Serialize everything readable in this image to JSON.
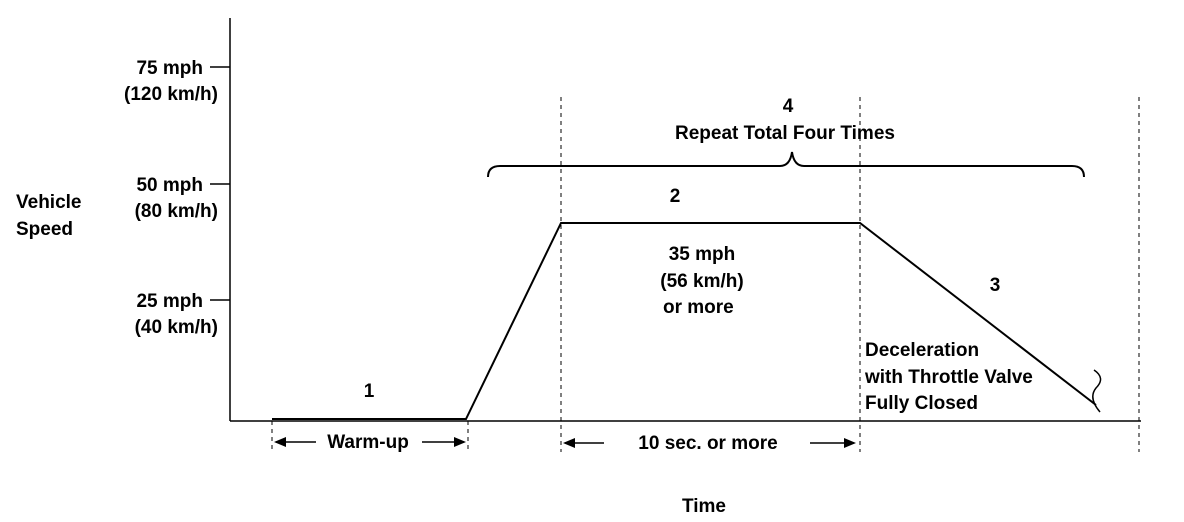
{
  "yaxis": {
    "title_line1": "Vehicle",
    "title_line2": "Speed",
    "ticks": [
      {
        "mph": "75 mph",
        "kmh": "(120 km/h)"
      },
      {
        "mph": "50 mph",
        "kmh": "(80 km/h)"
      },
      {
        "mph": "25 mph",
        "kmh": "(40 km/h)"
      }
    ]
  },
  "xaxis": {
    "title": "Time"
  },
  "steps": {
    "warmup_number": "1",
    "hold_number": "2",
    "decel_number": "3",
    "repeat_number": "4",
    "repeat_label": "Repeat Total Four Times"
  },
  "annotations": {
    "hold_speed_line1": "35 mph",
    "hold_speed_line2": "(56 km/h)",
    "hold_speed_line3": "or more",
    "decel_line1": "Deceleration",
    "decel_line2": "with Throttle Valve",
    "decel_line3": "Fully Closed",
    "warmup_label": "Warm-up",
    "hold_duration_label": "10 sec. or more"
  }
}
